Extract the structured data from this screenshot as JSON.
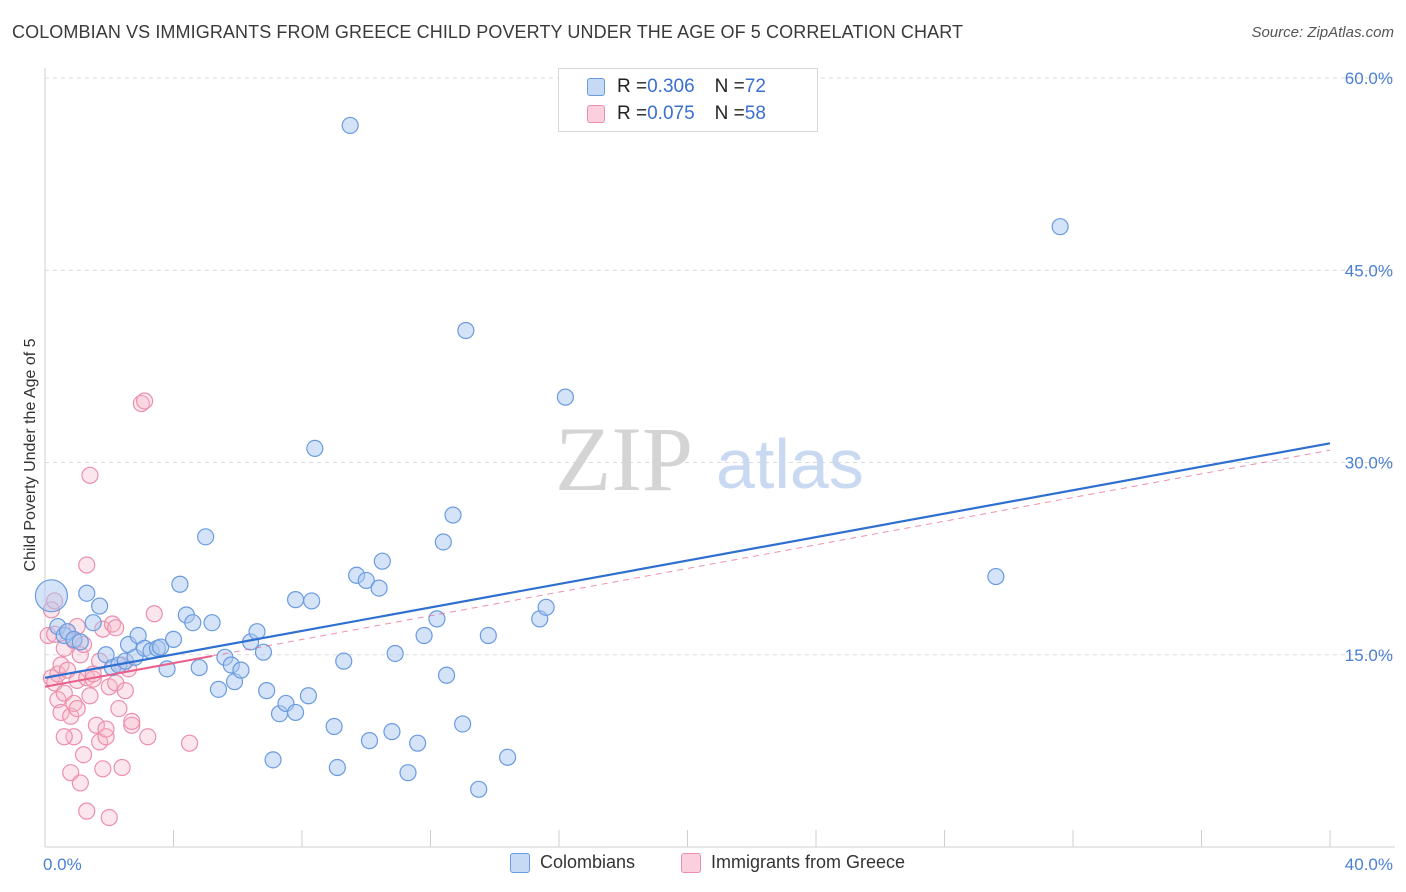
{
  "title": "COLOMBIAN VS IMMIGRANTS FROM GREECE CHILD POVERTY UNDER THE AGE OF 5 CORRELATION CHART",
  "source": "Source: ZipAtlas.com",
  "watermark": {
    "zip": "ZIP",
    "atlas": "atlas"
  },
  "colors": {
    "blue_fill": "#aac8f0",
    "blue_stroke": "#6a9be0",
    "blue_line": "#2f6fd0",
    "pink_fill": "#f7b8cc",
    "pink_stroke": "#ec8fac",
    "pink_line": "#e8608c",
    "grid": "#d9d9d9",
    "tick_label": "#4a7fd4"
  },
  "legend_top": [
    {
      "r_label": "R = ",
      "r_value": "0.306",
      "n_label": "N = ",
      "n_value": "72",
      "color": "#aac8f0"
    },
    {
      "r_label": "R = ",
      "r_value": "0.075",
      "n_label": "N = ",
      "n_value": "58",
      "color": "#f7b8cc"
    }
  ],
  "legend_bottom": [
    {
      "label": "Colombians",
      "color": "#aac8f0"
    },
    {
      "label": "Immigrants from Greece",
      "color": "#f7b8cc"
    }
  ],
  "chart_data": {
    "type": "scatter",
    "xlabel": "",
    "ylabel": "Child Poverty Under the Age of 5",
    "xlim": [
      0,
      40
    ],
    "ylim": [
      0,
      60
    ],
    "x_tick_labels": [
      {
        "value": 0,
        "label": "0.0%"
      },
      {
        "value": 40,
        "label": "40.0%"
      }
    ],
    "y_tick_labels": [
      {
        "value": 15,
        "label": "15.0%"
      },
      {
        "value": 30,
        "label": "30.0%"
      },
      {
        "value": 45,
        "label": "45.0%"
      },
      {
        "value": 60,
        "label": "60.0%"
      }
    ],
    "series": [
      {
        "name": "Colombians",
        "r": 0.306,
        "n": 72,
        "trendline": {
          "x": [
            0,
            40
          ],
          "y": [
            13.2,
            31.5
          ]
        },
        "points": [
          {
            "x": 0.2,
            "y": 19.6,
            "big": true
          },
          {
            "x": 0.4,
            "y": 17.2
          },
          {
            "x": 0.6,
            "y": 16.5
          },
          {
            "x": 0.7,
            "y": 16.8
          },
          {
            "x": 0.9,
            "y": 16.2
          },
          {
            "x": 1.1,
            "y": 16.0
          },
          {
            "x": 1.3,
            "y": 19.8
          },
          {
            "x": 1.5,
            "y": 17.5
          },
          {
            "x": 1.7,
            "y": 18.8
          },
          {
            "x": 1.9,
            "y": 15.0
          },
          {
            "x": 2.1,
            "y": 14.0
          },
          {
            "x": 2.3,
            "y": 14.2
          },
          {
            "x": 2.5,
            "y": 14.5
          },
          {
            "x": 2.6,
            "y": 15.8
          },
          {
            "x": 2.8,
            "y": 14.8
          },
          {
            "x": 2.9,
            "y": 16.5
          },
          {
            "x": 3.1,
            "y": 15.5
          },
          {
            "x": 3.3,
            "y": 15.3
          },
          {
            "x": 3.5,
            "y": 15.5
          },
          {
            "x": 3.6,
            "y": 15.6
          },
          {
            "x": 3.8,
            "y": 13.9
          },
          {
            "x": 4.0,
            "y": 16.2
          },
          {
            "x": 4.2,
            "y": 20.5
          },
          {
            "x": 4.4,
            "y": 18.1
          },
          {
            "x": 4.6,
            "y": 17.5
          },
          {
            "x": 4.8,
            "y": 14.0
          },
          {
            "x": 5.0,
            "y": 24.2
          },
          {
            "x": 5.2,
            "y": 17.5
          },
          {
            "x": 5.4,
            "y": 12.3
          },
          {
            "x": 5.6,
            "y": 14.8
          },
          {
            "x": 5.8,
            "y": 14.2
          },
          {
            "x": 5.9,
            "y": 12.9
          },
          {
            "x": 6.1,
            "y": 13.8
          },
          {
            "x": 6.4,
            "y": 16.0
          },
          {
            "x": 6.6,
            "y": 16.8
          },
          {
            "x": 6.8,
            "y": 15.2
          },
          {
            "x": 6.9,
            "y": 12.2
          },
          {
            "x": 7.1,
            "y": 6.8
          },
          {
            "x": 7.3,
            "y": 10.4
          },
          {
            "x": 7.5,
            "y": 11.2
          },
          {
            "x": 7.8,
            "y": 10.5
          },
          {
            "x": 7.8,
            "y": 19.3
          },
          {
            "x": 8.2,
            "y": 11.8
          },
          {
            "x": 8.3,
            "y": 19.2
          },
          {
            "x": 8.4,
            "y": 31.1
          },
          {
            "x": 9.0,
            "y": 9.4
          },
          {
            "x": 9.1,
            "y": 6.2
          },
          {
            "x": 9.3,
            "y": 14.5
          },
          {
            "x": 9.5,
            "y": 56.3
          },
          {
            "x": 9.7,
            "y": 21.2
          },
          {
            "x": 10.0,
            "y": 20.8
          },
          {
            "x": 10.1,
            "y": 8.3
          },
          {
            "x": 10.4,
            "y": 20.2
          },
          {
            "x": 10.5,
            "y": 22.3
          },
          {
            "x": 10.8,
            "y": 9.0
          },
          {
            "x": 10.9,
            "y": 15.1
          },
          {
            "x": 11.3,
            "y": 5.8
          },
          {
            "x": 11.6,
            "y": 8.1
          },
          {
            "x": 11.8,
            "y": 16.5
          },
          {
            "x": 12.2,
            "y": 17.8
          },
          {
            "x": 12.4,
            "y": 23.8
          },
          {
            "x": 12.5,
            "y": 13.4
          },
          {
            "x": 12.7,
            "y": 25.9
          },
          {
            "x": 13.0,
            "y": 9.6
          },
          {
            "x": 13.1,
            "y": 40.3
          },
          {
            "x": 13.5,
            "y": 4.5
          },
          {
            "x": 13.8,
            "y": 16.5
          },
          {
            "x": 14.4,
            "y": 7.0
          },
          {
            "x": 15.4,
            "y": 17.8
          },
          {
            "x": 15.6,
            "y": 18.7
          },
          {
            "x": 16.2,
            "y": 35.1
          },
          {
            "x": 29.6,
            "y": 21.1
          },
          {
            "x": 31.6,
            "y": 48.4
          }
        ]
      },
      {
        "name": "Immigrants from Greece",
        "r": 0.075,
        "n": 58,
        "trendline": {
          "x": [
            0,
            5.2
          ],
          "y": [
            12.5,
            14.9
          ]
        },
        "points": [
          {
            "x": 0.1,
            "y": 16.5
          },
          {
            "x": 0.2,
            "y": 18.5
          },
          {
            "x": 0.2,
            "y": 13.2
          },
          {
            "x": 0.3,
            "y": 19.2
          },
          {
            "x": 0.3,
            "y": 12.8
          },
          {
            "x": 0.4,
            "y": 11.5
          },
          {
            "x": 0.4,
            "y": 13.5
          },
          {
            "x": 0.5,
            "y": 10.5
          },
          {
            "x": 0.5,
            "y": 14.2
          },
          {
            "x": 0.6,
            "y": 15.5
          },
          {
            "x": 0.6,
            "y": 12.0
          },
          {
            "x": 0.7,
            "y": 16.8
          },
          {
            "x": 0.7,
            "y": 13.8
          },
          {
            "x": 0.8,
            "y": 10.2
          },
          {
            "x": 0.8,
            "y": 5.8
          },
          {
            "x": 0.9,
            "y": 11.2
          },
          {
            "x": 0.9,
            "y": 8.6
          },
          {
            "x": 1.0,
            "y": 17.2
          },
          {
            "x": 1.0,
            "y": 13.0
          },
          {
            "x": 1.0,
            "y": 10.8
          },
          {
            "x": 1.1,
            "y": 15.0
          },
          {
            "x": 1.1,
            "y": 5.0
          },
          {
            "x": 1.2,
            "y": 7.2
          },
          {
            "x": 1.2,
            "y": 15.8
          },
          {
            "x": 1.3,
            "y": 22.0
          },
          {
            "x": 1.3,
            "y": 13.2
          },
          {
            "x": 1.3,
            "y": 2.8
          },
          {
            "x": 1.4,
            "y": 11.8
          },
          {
            "x": 1.4,
            "y": 29.0
          },
          {
            "x": 1.5,
            "y": 13.1
          },
          {
            "x": 1.5,
            "y": 13.5
          },
          {
            "x": 1.6,
            "y": 9.5
          },
          {
            "x": 1.7,
            "y": 14.5
          },
          {
            "x": 1.7,
            "y": 8.2
          },
          {
            "x": 1.8,
            "y": 17.0
          },
          {
            "x": 1.8,
            "y": 6.1
          },
          {
            "x": 1.9,
            "y": 8.6
          },
          {
            "x": 1.9,
            "y": 9.2
          },
          {
            "x": 2.0,
            "y": 2.3
          },
          {
            "x": 2.0,
            "y": 12.5
          },
          {
            "x": 2.1,
            "y": 17.4
          },
          {
            "x": 2.2,
            "y": 12.8
          },
          {
            "x": 2.3,
            "y": 10.8
          },
          {
            "x": 2.4,
            "y": 14.2
          },
          {
            "x": 2.4,
            "y": 6.2
          },
          {
            "x": 2.5,
            "y": 12.2
          },
          {
            "x": 2.6,
            "y": 13.9
          },
          {
            "x": 2.7,
            "y": 9.5
          },
          {
            "x": 2.7,
            "y": 9.8
          },
          {
            "x": 3.0,
            "y": 34.6
          },
          {
            "x": 3.1,
            "y": 34.8
          },
          {
            "x": 3.2,
            "y": 8.6
          },
          {
            "x": 3.4,
            "y": 18.2
          },
          {
            "x": 4.5,
            "y": 8.1
          },
          {
            "x": 0.3,
            "y": 16.6
          },
          {
            "x": 0.6,
            "y": 8.6
          },
          {
            "x": 0.9,
            "y": 16.1
          },
          {
            "x": 2.2,
            "y": 17.1
          }
        ]
      }
    ]
  }
}
